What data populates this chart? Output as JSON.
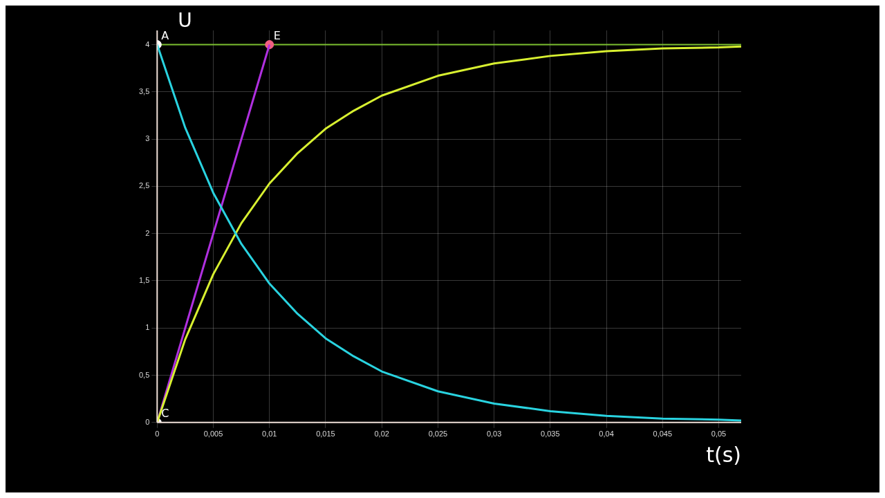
{
  "chart_data": {
    "type": "line",
    "xlabel": "t(s)",
    "ylabel": "U",
    "xlim": [
      0,
      0.052
    ],
    "ylim": [
      0,
      4.15
    ],
    "xticks": [
      0,
      {
        "value": 0.005,
        "label": "0,005"
      },
      {
        "value": 0.01,
        "label": "0,01"
      },
      {
        "value": 0.015,
        "label": "0,015"
      },
      {
        "value": 0.02,
        "label": "0,02"
      },
      {
        "value": 0.025,
        "label": "0,025"
      },
      {
        "value": 0.03,
        "label": "0,03"
      },
      {
        "value": 0.035,
        "label": "0,035"
      },
      {
        "value": 0.04,
        "label": "0,04"
      },
      {
        "value": 0.045,
        "label": "0,045"
      },
      {
        "value": 0.05,
        "label": "0,05"
      }
    ],
    "yticks": [
      0,
      {
        "value": 0.5,
        "label": "0,5"
      },
      1,
      {
        "value": 1.5,
        "label": "1,5"
      },
      2,
      {
        "value": 2.5,
        "label": "2,5"
      },
      3,
      {
        "value": 3.5,
        "label": "3,5"
      },
      4
    ],
    "grid": true,
    "legend": false,
    "marker": "none",
    "series": [
      {
        "color": "#29d3e0",
        "x": [
          0,
          0.0025,
          0.005,
          0.0075,
          0.01,
          0.0125,
          0.015,
          0.0175,
          0.02,
          0.025,
          0.03,
          0.035,
          0.04,
          0.045,
          0.05,
          0.052
        ],
        "values": [
          4,
          3.12,
          2.43,
          1.89,
          1.47,
          1.15,
          0.89,
          0.7,
          0.54,
          0.33,
          0.2,
          0.12,
          0.07,
          0.04,
          0.03,
          0.02
        ]
      },
      {
        "color": "#d8f030",
        "x": [
          0,
          0.0025,
          0.005,
          0.0075,
          0.01,
          0.0125,
          0.015,
          0.0175,
          0.02,
          0.025,
          0.03,
          0.035,
          0.04,
          0.045,
          0.05,
          0.052
        ],
        "values": [
          0,
          0.88,
          1.57,
          2.11,
          2.53,
          2.85,
          3.11,
          3.3,
          3.46,
          3.67,
          3.8,
          3.88,
          3.93,
          3.96,
          3.97,
          3.98
        ]
      },
      {
        "color": "#b030e0",
        "x": [
          0,
          0.01
        ],
        "values": [
          0,
          4
        ]
      },
      {
        "type": "scatter",
        "marker": "circle",
        "x": [
          0,
          0,
          0.01
        ],
        "values": [
          4,
          0,
          4
        ],
        "colors": [
          "#ffffff",
          "#ffffff",
          "#f06080"
        ]
      }
    ],
    "ref_lines": [
      {
        "axis": "y",
        "value": 4,
        "color": "#7cc030"
      }
    ],
    "annotations": [
      "A",
      "C",
      "E"
    ]
  }
}
